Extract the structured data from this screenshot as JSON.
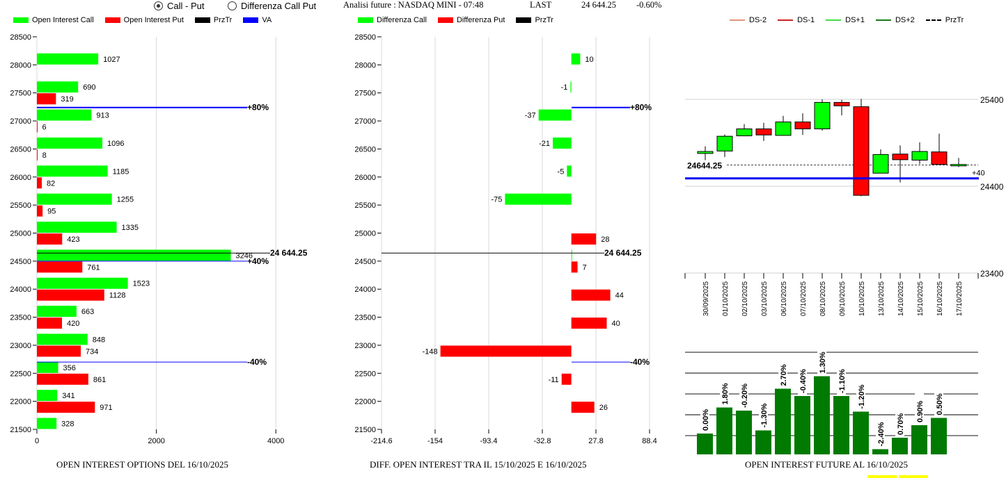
{
  "controls": {
    "radio_options": [
      {
        "label": "Call - Put",
        "selected": true
      },
      {
        "label": "Differenza Call Put",
        "selected": false
      }
    ]
  },
  "header": {
    "title": "Analisi future : NASDAQ MINI - 07:48",
    "last_label": "LAST",
    "last_value": "24 644.25",
    "change": "-0.60%"
  },
  "colors": {
    "call": "#00ff00",
    "put": "#ff0000",
    "przTr": "#000000",
    "va": "#0000ff",
    "ds_minus2": "#e0967a",
    "ds_minus1": "#cc2222",
    "ds_plus1": "#44dd44",
    "ds_plus2": "#1a7a1a",
    "oi_future_bar": "#007a00"
  },
  "chart_data": [
    {
      "type": "bar",
      "orientation": "horizontal",
      "title": "OPEN INTEREST OPTIONS DEL 16/10/2025",
      "legend": [
        "Open Interest Call",
        "Open Interest Put",
        "PrzTr",
        "VA"
      ],
      "categories": [
        28000,
        27500,
        27000,
        26500,
        26000,
        25500,
        25000,
        24500,
        24000,
        23500,
        23000,
        22500,
        22000,
        21500
      ],
      "series": [
        {
          "name": "Open Interest Call",
          "values": [
            1027,
            690,
            913,
            1096,
            1185,
            1255,
            1335,
            3246,
            1523,
            663,
            848,
            356,
            341,
            328
          ]
        },
        {
          "name": "Open Interest Put",
          "values": [
            null,
            319,
            6,
            8,
            82,
            95,
            423,
            761,
            1128,
            420,
            734,
            861,
            971,
            null
          ]
        }
      ],
      "y_ticks": [
        28500,
        28000,
        27500,
        27000,
        26500,
        26000,
        25500,
        25000,
        24500,
        24000,
        23500,
        23000,
        22500,
        22000,
        21500
      ],
      "x_ticks": [
        0,
        2000,
        4000
      ],
      "xlim": [
        0,
        5000
      ],
      "ylim": [
        21500,
        28500
      ],
      "lines": [
        {
          "label": "+80%",
          "y": 27240,
          "color": "#0000ff"
        },
        {
          "label": "24 644.25",
          "y": 24644.25,
          "color": "#000000"
        },
        {
          "label": "+40%",
          "y": 24500,
          "color": "#0000ff"
        },
        {
          "label": "-40%",
          "y": 22700,
          "color": "#0000ff"
        }
      ]
    },
    {
      "type": "bar",
      "orientation": "horizontal",
      "title": "DIFF. OPEN INTEREST TRA IL 15/10/2025 E 16/10/2025",
      "legend": [
        "Differenza Call",
        "Differenza Put",
        "PrzTr"
      ],
      "categories": [
        28000,
        27500,
        27000,
        26500,
        26000,
        25500,
        25000,
        24500,
        24000,
        23500,
        23000,
        22500,
        22000,
        21500
      ],
      "series": [
        {
          "name": "Differenza Call",
          "values": [
            10,
            -1,
            -37,
            -21,
            -5,
            -75,
            null,
            0,
            null,
            null,
            null,
            null,
            null,
            null
          ]
        },
        {
          "name": "Differenza Put",
          "values": [
            null,
            null,
            null,
            null,
            null,
            null,
            28,
            7,
            44,
            40,
            -148,
            -11,
            26,
            null
          ]
        }
      ],
      "y_ticks": [
        28500,
        28000,
        27500,
        27000,
        26500,
        26000,
        25500,
        25000,
        24500,
        24000,
        23500,
        23000,
        22500,
        22000,
        21500
      ],
      "x_ticks": [
        -214.6,
        -154,
        -93.4,
        -32.8,
        27.8,
        88.4
      ],
      "xlim": [
        -214.6,
        88.4
      ],
      "ylim": [
        21500,
        28500
      ],
      "lines": [
        {
          "label": "+80%",
          "y": 27240,
          "color": "#0000ff"
        },
        {
          "label": "24 644.25",
          "y": 24644.25,
          "color": "#000000"
        },
        {
          "label": "-40%",
          "y": 22700,
          "color": "#0000ff"
        }
      ]
    },
    {
      "type": "candlestick",
      "legend": [
        "DS-2",
        "DS-1",
        "DS+1",
        "DS+2",
        "PrzTr"
      ],
      "categories": [
        "30/09/2025",
        "01/10/2025",
        "02/10/2025",
        "03/10/2025",
        "06/10/2025",
        "07/10/2025",
        "08/10/2025",
        "09/10/2025",
        "10/10/2025",
        "13/10/2025",
        "14/10/2025",
        "15/10/2025",
        "16/10/2025",
        "17/10/2025"
      ],
      "ohlc": [
        {
          "open": 24777,
          "high": 24860,
          "low": 24700,
          "close": 24800
        },
        {
          "open": 24805,
          "high": 24995,
          "low": 24735,
          "close": 24975
        },
        {
          "open": 24980,
          "high": 25115,
          "low": 24975,
          "close": 25060
        },
        {
          "open": 25060,
          "high": 25130,
          "low": 24920,
          "close": 24990
        },
        {
          "open": 24985,
          "high": 25210,
          "low": 24985,
          "close": 25140
        },
        {
          "open": 25140,
          "high": 25240,
          "low": 24990,
          "close": 25060
        },
        {
          "open": 25060,
          "high": 25400,
          "low": 25040,
          "close": 25365
        },
        {
          "open": 25365,
          "high": 25395,
          "low": 25215,
          "close": 25325
        },
        {
          "open": 25315,
          "high": 25405,
          "low": 24285,
          "close": 24295
        },
        {
          "open": 24550,
          "high": 24825,
          "low": 24550,
          "close": 24765
        },
        {
          "open": 24770,
          "high": 24870,
          "low": 24443,
          "close": 24705
        },
        {
          "open": 24700,
          "high": 24905,
          "low": 24655,
          "close": 24800
        },
        {
          "open": 24795,
          "high": 25005,
          "low": 24645,
          "close": 24650
        },
        {
          "open": 24650,
          "high": 24725,
          "low": 24620,
          "close": 24650
        }
      ],
      "y_ticks": [
        25400,
        24400,
        23400
      ],
      "ylim": [
        23400,
        25480
      ],
      "przTr_label": "24644.25",
      "przTr": 24644.25,
      "va_level": 24490,
      "right_annotation": "+40"
    },
    {
      "type": "bar",
      "title": "OPEN INTEREST FUTURE AL 16/10/2025",
      "categories": [
        "30/09/2025",
        "01/10/2025",
        "02/10/2025",
        "03/10/2025",
        "06/10/2025",
        "07/10/2025",
        "08/10/2025",
        "09/10/2025",
        "10/10/2025",
        "13/10/2025",
        "14/10/2025",
        "15/10/2025",
        "16/10/2025"
      ],
      "labels": [
        "0.00%",
        "1.80%",
        "-0.20%",
        "-1.30%",
        "2.70%",
        "-0.40%",
        "1.30%",
        "-1.10%",
        "-1.20%",
        "-2.40%",
        "0.70%",
        "0.90%",
        "0.50%"
      ],
      "values": [
        0.2,
        0.45,
        0.42,
        0.23,
        0.63,
        0.56,
        0.75,
        0.56,
        0.41,
        0.05,
        0.16,
        0.28,
        0.35
      ],
      "value_unit": "relative open interest (unlabelled axis, 0-1)",
      "grid": true
    }
  ]
}
